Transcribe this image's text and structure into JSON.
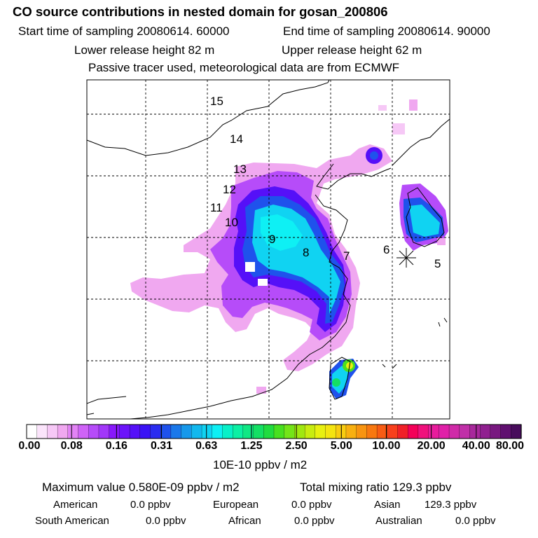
{
  "header": {
    "title": "CO  source contributions in nested domain for gosan_200806",
    "start_time": "Start time of sampling 20080614. 60000",
    "end_time": "End time of sampling 20080614. 90000",
    "lower_release": "Lower release height   82 m",
    "upper_release": "Upper release height   62 m",
    "tracer_note": "Passive tracer used, meteorological data are from ECMWF"
  },
  "map": {
    "trajectory_labels": [
      "15",
      "14",
      "13",
      "12",
      "11",
      "10",
      "9",
      "8",
      "7",
      "6",
      "5"
    ],
    "receptor_marker": "asterisk",
    "colors": {
      "frame": "#000000",
      "grid": "#000000",
      "coast": "#000000"
    }
  },
  "colorbar": {
    "tick_labels": [
      "0.00",
      "0.08",
      "0.16",
      "0.31",
      "0.63",
      "1.25",
      "2.50",
      "5.00",
      "10.00",
      "20.00",
      "40.00",
      "80.00"
    ],
    "colors": [
      "#ffffff",
      "#fbe4fb",
      "#f6c8f6",
      "#f0a8f0",
      "#e283f5",
      "#cf63f7",
      "#b64cf9",
      "#a237f9",
      "#8818fb",
      "#6c14fa",
      "#5510f8",
      "#3a12f5",
      "#2a2cf0",
      "#1f52ec",
      "#1a78ea",
      "#1698ea",
      "#12b8ee",
      "#10d3f2",
      "#0ef0f4",
      "#08f0c8",
      "#0cf0a4",
      "#10e884",
      "#14e064",
      "#20dc40",
      "#48e020",
      "#74e418",
      "#a0e810",
      "#c8ec10",
      "#e8f010",
      "#f4e410",
      "#f8cc10",
      "#f8b010",
      "#f89410",
      "#f87810",
      "#f85c14",
      "#f8401c",
      "#f02028",
      "#f40058",
      "#f0107c",
      "#e81c9c",
      "#e020a8",
      "#d02aa8",
      "#c030a8",
      "#a8289c",
      "#902090",
      "#781880",
      "#601070",
      "#480c5c"
    ],
    "units": "10E-10 ppbv / m2"
  },
  "summary": {
    "maximum_value": "Maximum value  0.580E-09 ppbv / m2",
    "total_mixing_ratio": "Total mixing ratio      129.3 ppbv",
    "american": "American",
    "american_value": "0.0 ppbv",
    "european": "European",
    "european_value": "0.0 ppbv",
    "asian": "Asian",
    "asian_value": "129.3 ppbv",
    "south_american": "South American",
    "south_american_value": "0.0 ppbv",
    "african": "African",
    "african_value": "0.0 ppbv",
    "australian": "Australian",
    "australian_value": "0.0 ppbv"
  }
}
